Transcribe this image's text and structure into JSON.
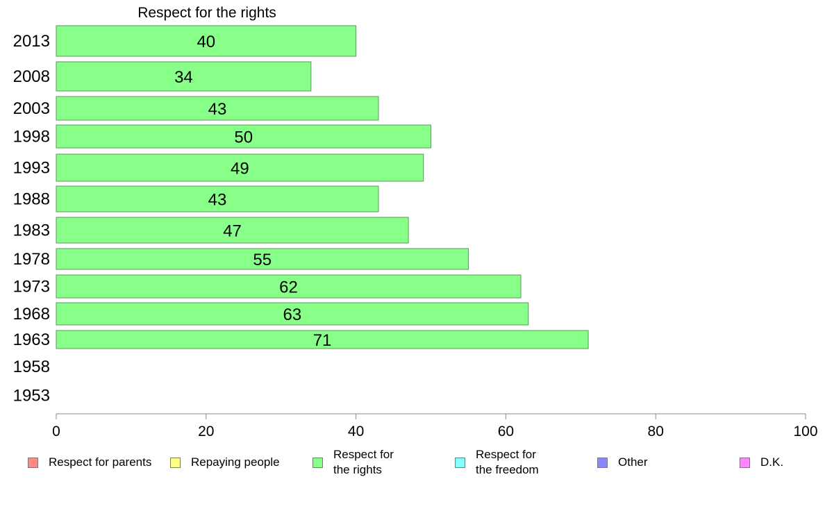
{
  "chart_data": {
    "type": "bar",
    "orientation": "horizontal",
    "title": "Respect for the rights",
    "categories": [
      "2013",
      "2008",
      "2003",
      "1998",
      "1993",
      "1988",
      "1983",
      "1978",
      "1973",
      "1968",
      "1963",
      "1958",
      "1953"
    ],
    "series": [
      {
        "name": "Respect for the rights",
        "color": "#88FF88",
        "values": [
          40,
          34,
          43,
          50,
          49,
          43,
          47,
          55,
          62,
          63,
          71,
          null,
          null
        ],
        "value_labels": [
          "40",
          "34",
          "43",
          "50",
          "49",
          "43",
          "47",
          "55",
          "62",
          "63",
          "71",
          "",
          ""
        ]
      }
    ],
    "xlim": [
      0,
      100
    ],
    "x_ticks": [
      0,
      20,
      40,
      60,
      80,
      100
    ],
    "x_tick_labels": [
      "0",
      "20",
      "40",
      "60",
      "80",
      "100"
    ],
    "grid": false,
    "legend_position": "bottom"
  },
  "legend": [
    {
      "label": "Respect for parents",
      "color": "#FF8888"
    },
    {
      "label": "Repaying people",
      "color": "#FFFF88"
    },
    {
      "label": "Respect for\nthe rights",
      "color": "#88FF88"
    },
    {
      "label": "Respect for\nthe freedom",
      "color": "#88FFFF"
    },
    {
      "label": "Other",
      "color": "#8888FF"
    },
    {
      "label": "D.K.",
      "color": "#FF88FF"
    }
  ]
}
